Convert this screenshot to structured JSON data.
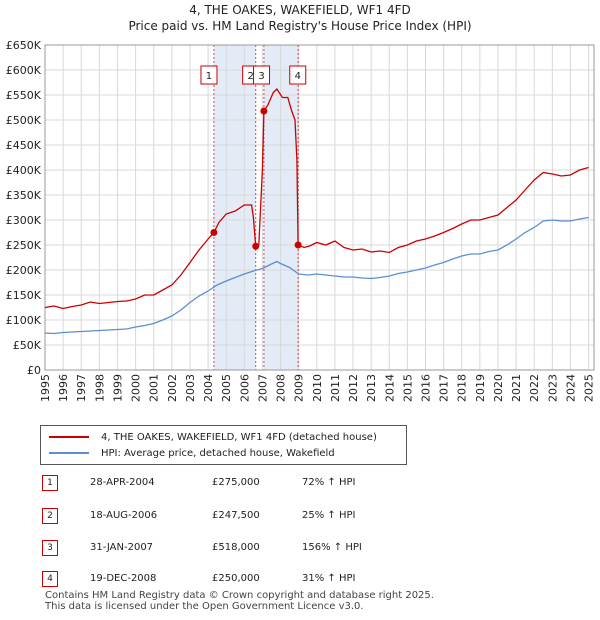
{
  "title_line1": "4, THE OAKES, WAKEFIELD, WF1 4FD",
  "title_line2": "Price paid vs. HM Land Registry's House Price Index (HPI)",
  "colors": {
    "property": "#cc0000",
    "hpi": "#5b8fd0",
    "shade": "#dce6f5",
    "grid": "#d8d8d8",
    "marker_border": "#cc0000"
  },
  "legend": {
    "property_label": "4, THE OAKES, WAKEFIELD, WF1 4FD (detached house)",
    "hpi_label": "HPI: Average price, detached house, Wakefield"
  },
  "transactions": [
    {
      "num": "1",
      "date": "28-APR-2004",
      "price": "£275,000",
      "hpi": "72% ↑ HPI"
    },
    {
      "num": "2",
      "date": "18-AUG-2006",
      "price": "£247,500",
      "hpi": "25% ↑ HPI"
    },
    {
      "num": "3",
      "date": "31-JAN-2007",
      "price": "£518,000",
      "hpi": "156% ↑ HPI"
    },
    {
      "num": "4",
      "date": "19-DEC-2008",
      "price": "£250,000",
      "hpi": "31% ↑ HPI"
    }
  ],
  "footer_line1": "Contains HM Land Registry data © Crown copyright and database right 2025.",
  "footer_line2": "This data is licensed under the Open Government Licence v3.0.",
  "chart_data": {
    "type": "line",
    "title": "Price paid vs. HM Land Registry's House Price Index (HPI)",
    "xlim": [
      1995,
      2025.3
    ],
    "ylim": [
      0,
      650000
    ],
    "y_ticks": [
      0,
      50000,
      100000,
      150000,
      200000,
      250000,
      300000,
      350000,
      400000,
      450000,
      500000,
      550000,
      600000,
      650000
    ],
    "y_tick_labels": [
      "£0",
      "£50K",
      "£100K",
      "£150K",
      "£200K",
      "£250K",
      "£300K",
      "£350K",
      "£400K",
      "£450K",
      "£500K",
      "£550K",
      "£600K",
      "£650K"
    ],
    "x_ticks": [
      1995,
      1996,
      1997,
      1998,
      1999,
      2000,
      2001,
      2002,
      2003,
      2004,
      2005,
      2006,
      2007,
      2008,
      2009,
      2010,
      2011,
      2012,
      2013,
      2014,
      2015,
      2016,
      2017,
      2018,
      2019,
      2020,
      2021,
      2022,
      2023,
      2024,
      2025
    ],
    "x_tick_labels": [
      "1995",
      "1996",
      "1997",
      "1998",
      "1999",
      "2000",
      "2001",
      "2002",
      "2003",
      "2004",
      "2005",
      "2006",
      "2007",
      "2008",
      "2009",
      "2010",
      "2011",
      "2012",
      "2013",
      "2014",
      "2015",
      "2016",
      "2017",
      "2018",
      "2019",
      "2020",
      "2021",
      "2022",
      "2023",
      "2024",
      "2025"
    ],
    "grid": true,
    "shaded_ranges": [
      [
        2004.32,
        2006.63
      ],
      [
        2007.08,
        2008.97
      ]
    ],
    "series": [
      {
        "name": "4, THE OAKES, WAKEFIELD, WF1 4FD (detached house)",
        "points": [
          [
            1995,
            125000
          ],
          [
            1995.5,
            128000
          ],
          [
            1996,
            123000
          ],
          [
            1996.5,
            127000
          ],
          [
            1997,
            130000
          ],
          [
            1997.5,
            136000
          ],
          [
            1998,
            133000
          ],
          [
            1998.5,
            135000
          ],
          [
            1999,
            137000
          ],
          [
            1999.5,
            138000
          ],
          [
            2000,
            142000
          ],
          [
            2000.5,
            150000
          ],
          [
            2001,
            150000
          ],
          [
            2001.5,
            160000
          ],
          [
            2002,
            170000
          ],
          [
            2002.5,
            190000
          ],
          [
            2003,
            215000
          ],
          [
            2003.5,
            240000
          ],
          [
            2004,
            262000
          ],
          [
            2004.32,
            275000
          ],
          [
            2004.6,
            295000
          ],
          [
            2005,
            312000
          ],
          [
            2005.5,
            318000
          ],
          [
            2006,
            330000
          ],
          [
            2006.4,
            330000
          ],
          [
            2006.5,
            305000
          ],
          [
            2006.6,
            260000
          ],
          [
            2006.63,
            247500
          ],
          [
            2006.8,
            250000
          ],
          [
            2007.0,
            400000
          ],
          [
            2007.08,
            518000
          ],
          [
            2007.3,
            530000
          ],
          [
            2007.6,
            555000
          ],
          [
            2007.8,
            562000
          ],
          [
            2008.1,
            545000
          ],
          [
            2008.4,
            545000
          ],
          [
            2008.6,
            520000
          ],
          [
            2008.8,
            500000
          ],
          [
            2008.9,
            420000
          ],
          [
            2008.97,
            250000
          ],
          [
            2009.3,
            245000
          ],
          [
            2009.6,
            248000
          ],
          [
            2010,
            255000
          ],
          [
            2010.5,
            250000
          ],
          [
            2011,
            258000
          ],
          [
            2011.5,
            245000
          ],
          [
            2012,
            240000
          ],
          [
            2012.5,
            242000
          ],
          [
            2013,
            236000
          ],
          [
            2013.5,
            238000
          ],
          [
            2014,
            235000
          ],
          [
            2014.5,
            245000
          ],
          [
            2015,
            250000
          ],
          [
            2015.5,
            258000
          ],
          [
            2016,
            262000
          ],
          [
            2016.5,
            268000
          ],
          [
            2017,
            275000
          ],
          [
            2017.5,
            283000
          ],
          [
            2018,
            292000
          ],
          [
            2018.5,
            300000
          ],
          [
            2019,
            300000
          ],
          [
            2019.5,
            305000
          ],
          [
            2020,
            310000
          ],
          [
            2020.5,
            325000
          ],
          [
            2021,
            340000
          ],
          [
            2021.5,
            360000
          ],
          [
            2022,
            380000
          ],
          [
            2022.5,
            395000
          ],
          [
            2023,
            392000
          ],
          [
            2023.5,
            388000
          ],
          [
            2024,
            390000
          ],
          [
            2024.5,
            400000
          ],
          [
            2025,
            405000
          ]
        ]
      },
      {
        "name": "HPI: Average price, detached house, Wakefield",
        "points": [
          [
            1995,
            74000
          ],
          [
            1995.5,
            73000
          ],
          [
            1996,
            75000
          ],
          [
            1996.5,
            76000
          ],
          [
            1997,
            77000
          ],
          [
            1997.5,
            78000
          ],
          [
            1998,
            79000
          ],
          [
            1998.5,
            80000
          ],
          [
            1999,
            81000
          ],
          [
            1999.5,
            82000
          ],
          [
            2000,
            86000
          ],
          [
            2000.5,
            89000
          ],
          [
            2001,
            93000
          ],
          [
            2001.5,
            100000
          ],
          [
            2002,
            108000
          ],
          [
            2002.5,
            120000
          ],
          [
            2003,
            135000
          ],
          [
            2003.5,
            148000
          ],
          [
            2004,
            158000
          ],
          [
            2004.5,
            170000
          ],
          [
            2005,
            178000
          ],
          [
            2005.5,
            185000
          ],
          [
            2006,
            192000
          ],
          [
            2006.5,
            198000
          ],
          [
            2007,
            203000
          ],
          [
            2007.5,
            212000
          ],
          [
            2007.8,
            217000
          ],
          [
            2008,
            213000
          ],
          [
            2008.5,
            205000
          ],
          [
            2009,
            192000
          ],
          [
            2009.5,
            190000
          ],
          [
            2010,
            192000
          ],
          [
            2010.5,
            190000
          ],
          [
            2011,
            188000
          ],
          [
            2011.5,
            186000
          ],
          [
            2012,
            186000
          ],
          [
            2012.5,
            184000
          ],
          [
            2013,
            183000
          ],
          [
            2013.5,
            185000
          ],
          [
            2014,
            188000
          ],
          [
            2014.5,
            193000
          ],
          [
            2015,
            196000
          ],
          [
            2015.5,
            200000
          ],
          [
            2016,
            204000
          ],
          [
            2016.5,
            210000
          ],
          [
            2017,
            215000
          ],
          [
            2017.5,
            222000
          ],
          [
            2018,
            228000
          ],
          [
            2018.5,
            232000
          ],
          [
            2019,
            232000
          ],
          [
            2019.5,
            237000
          ],
          [
            2020,
            240000
          ],
          [
            2020.5,
            250000
          ],
          [
            2021,
            262000
          ],
          [
            2021.5,
            275000
          ],
          [
            2022,
            285000
          ],
          [
            2022.5,
            298000
          ],
          [
            2023,
            300000
          ],
          [
            2023.5,
            298000
          ],
          [
            2024,
            298000
          ],
          [
            2024.5,
            302000
          ],
          [
            2025,
            305000
          ]
        ]
      }
    ],
    "markers": [
      {
        "label": "1",
        "x": 2004.32,
        "y": 275000
      },
      {
        "label": "2",
        "x": 2006.63,
        "y": 247500
      },
      {
        "label": "3",
        "x": 2007.08,
        "y": 518000
      },
      {
        "label": "4",
        "x": 2008.97,
        "y": 250000
      }
    ]
  }
}
